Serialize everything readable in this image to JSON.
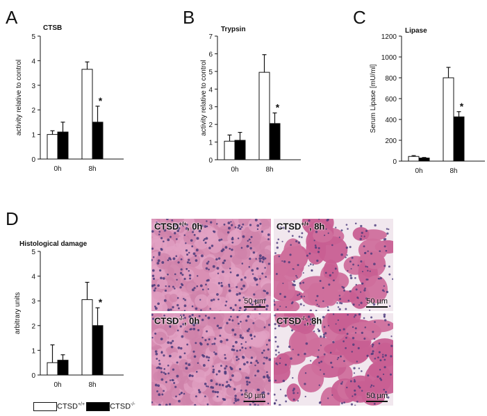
{
  "panels": {
    "a": "A",
    "b": "B",
    "c": "C",
    "d": "D"
  },
  "legend": {
    "wt_label": "CTSD",
    "wt_sup": "+/+",
    "ko_label": "CTSD",
    "ko_sup": "-/-",
    "wt_color": "#ffffff",
    "ko_color": "#000000"
  },
  "micrographs": [
    {
      "label": "CTSD",
      "sup": "+/+",
      "time": ", 0h",
      "scale": "50 µm",
      "style": "dense"
    },
    {
      "label": "CTSD",
      "sup": "+/+",
      "time": ", 8h",
      "scale": "50 µm",
      "style": "edema"
    },
    {
      "label": "CTSD",
      "sup": "-/-",
      "time": ", 0h",
      "scale": "50 µm",
      "style": "dense"
    },
    {
      "label": "CTSD",
      "sup": "-/-",
      "time": ", 8h",
      "scale": "50 µm",
      "style": "edema"
    }
  ],
  "chart_data": [
    {
      "type": "bar",
      "panel": "A",
      "title": "CTSB",
      "ylabel": "activity relative to control",
      "categories": [
        "0h",
        "8h"
      ],
      "ylim": [
        0,
        5
      ],
      "yticks": [
        0,
        1,
        2,
        3,
        4,
        5
      ],
      "series": [
        {
          "name": "CTSD+/+",
          "values": [
            1.0,
            3.65
          ],
          "errors": [
            0.15,
            0.3
          ]
        },
        {
          "name": "CTSD-/-",
          "values": [
            1.1,
            1.5
          ],
          "errors": [
            0.4,
            0.65
          ]
        }
      ],
      "annotations": [
        {
          "text": "*",
          "category": "8h",
          "series": 1
        }
      ]
    },
    {
      "type": "bar",
      "panel": "B",
      "title": "Trypsin",
      "ylabel": "activity relative to control",
      "categories": [
        "0h",
        "8h"
      ],
      "ylim": [
        0,
        7
      ],
      "yticks": [
        0,
        1,
        2,
        3,
        4,
        5,
        6,
        7
      ],
      "series": [
        {
          "name": "CTSD+/+",
          "values": [
            1.05,
            4.95
          ],
          "errors": [
            0.35,
            1.0
          ]
        },
        {
          "name": "CTSD-/-",
          "values": [
            1.1,
            2.05
          ],
          "errors": [
            0.45,
            0.6
          ]
        }
      ],
      "annotations": [
        {
          "text": "*",
          "category": "8h",
          "series": 1
        }
      ]
    },
    {
      "type": "bar",
      "panel": "C",
      "title": "Lipase",
      "ylabel": "Serum Lipase [mU/ml]",
      "categories": [
        "0h",
        "8h"
      ],
      "ylim": [
        0,
        1200
      ],
      "yticks": [
        0,
        200,
        400,
        600,
        800,
        1000,
        1200
      ],
      "series": [
        {
          "name": "CTSD+/+",
          "values": [
            45,
            800
          ],
          "errors": [
            8,
            100
          ]
        },
        {
          "name": "CTSD-/-",
          "values": [
            30,
            425
          ],
          "errors": [
            5,
            50
          ]
        }
      ],
      "annotations": [
        {
          "text": "*",
          "category": "8h",
          "series": 1
        }
      ]
    },
    {
      "type": "bar",
      "panel": "D",
      "title": "Histological damage",
      "ylabel": "arbitrary units",
      "categories": [
        "0h",
        "8h"
      ],
      "ylim": [
        0,
        5
      ],
      "yticks": [
        0,
        1,
        2,
        3,
        4,
        5
      ],
      "series": [
        {
          "name": "CTSD+/+",
          "values": [
            0.5,
            3.05
          ],
          "errors": [
            0.72,
            0.7
          ]
        },
        {
          "name": "CTSD-/-",
          "values": [
            0.6,
            2.0
          ],
          "errors": [
            0.22,
            0.72
          ]
        }
      ],
      "annotations": [
        {
          "text": "*",
          "category": "8h",
          "series": 1
        }
      ]
    }
  ]
}
